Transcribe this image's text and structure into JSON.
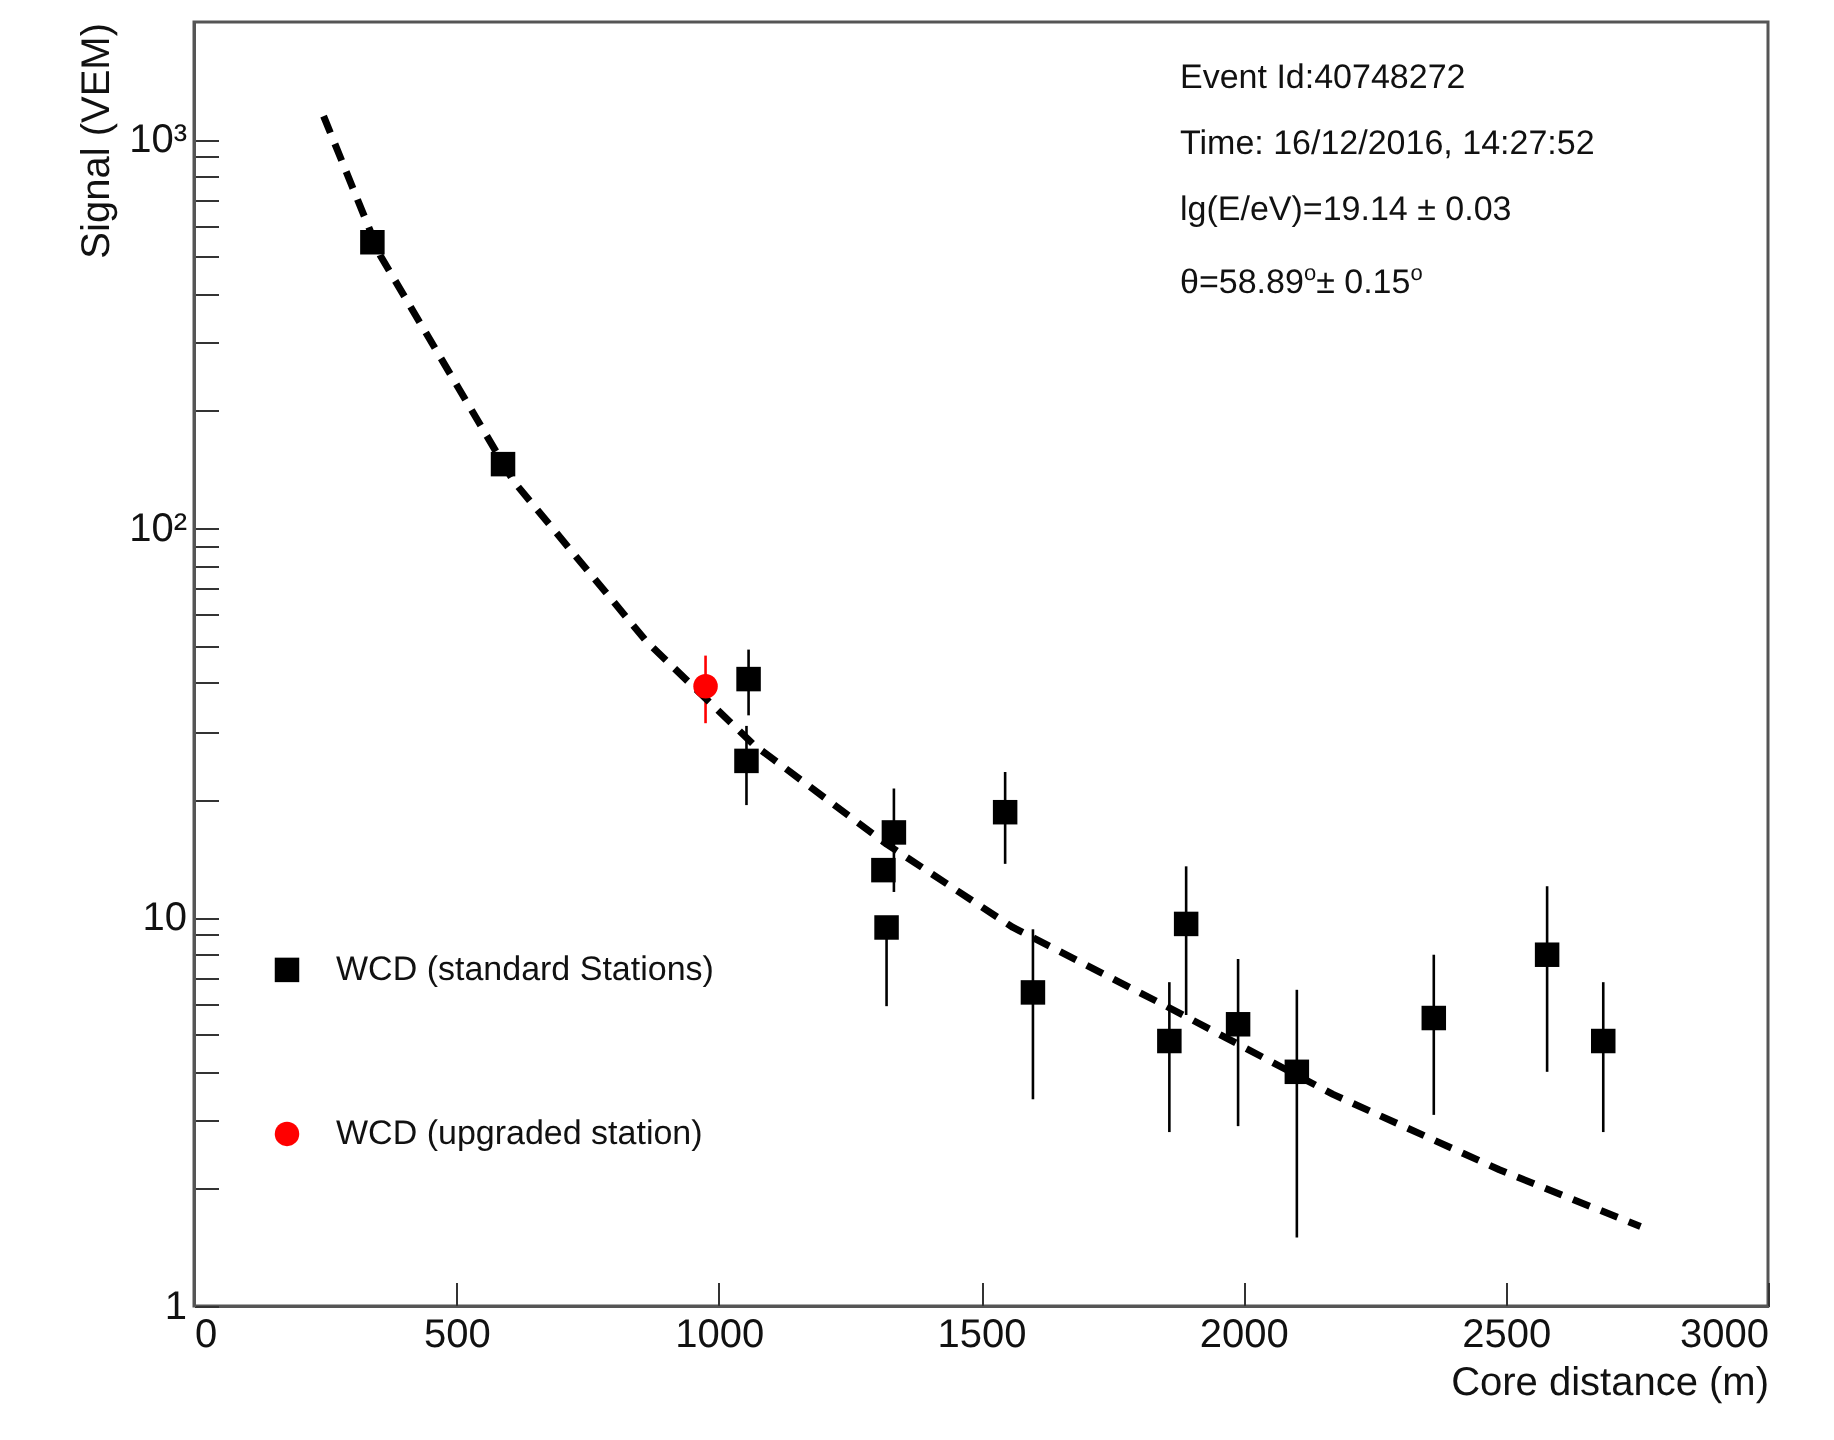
{
  "chart_data": {
    "type": "scatter",
    "xlabel": "Core distance (m)",
    "ylabel": "Signal (VEM)",
    "annotations": [
      "Event Id:40748272",
      "Time: 16/12/2016, 14:27:52",
      "lg(E/eV)=19.14 ± 0.03",
      "θ=58.89$^{o}$± 0.15$^{o}$"
    ],
    "xlim": [
      0,
      3000
    ],
    "xticks": [
      0,
      500,
      1000,
      1500,
      2000,
      2500,
      3000
    ],
    "ylim": [
      1,
      2000
    ],
    "log": "y",
    "yticks": [
      1,
      {
        "value": 2,
        "label": null
      },
      {
        "value": 3,
        "label": null
      },
      {
        "value": 4,
        "label": null
      },
      {
        "value": 5,
        "label": null
      },
      {
        "value": 6,
        "label": null
      },
      {
        "value": 7,
        "label": null
      },
      {
        "value": 8,
        "label": null
      },
      {
        "value": 9,
        "label": null
      },
      10,
      {
        "value": 20,
        "label": null
      },
      {
        "value": 30,
        "label": null
      },
      {
        "value": 40,
        "label": null
      },
      {
        "value": 50,
        "label": null
      },
      {
        "value": 60,
        "label": null
      },
      {
        "value": 70,
        "label": null
      },
      {
        "value": 80,
        "label": null
      },
      {
        "value": 90,
        "label": null
      },
      {
        "value": 100,
        "label": "10²"
      },
      {
        "value": 200,
        "label": null
      },
      {
        "value": 300,
        "label": null
      },
      {
        "value": 400,
        "label": null
      },
      {
        "value": 500,
        "label": null
      },
      {
        "value": 600,
        "label": null
      },
      {
        "value": 700,
        "label": null
      },
      {
        "value": 800,
        "label": null
      },
      {
        "value": 900,
        "label": null
      },
      {
        "value": 1000,
        "label": "10³"
      }
    ],
    "legend": "left",
    "grid": false,
    "series": [
      {
        "name": "WCD (standard Stations)",
        "color": "#000000",
        "marker": "square",
        "x": [
          340,
          589,
          1057,
          1053,
          1314,
          1320,
          1334,
          1546,
          1599,
          1859,
          1891,
          1990,
          2102,
          2363,
          2579,
          2686
        ],
        "values": [
          543,
          146,
          40.9,
          25.2,
          13.2,
          9.4,
          16.5,
          18.6,
          6.4,
          4.8,
          9.6,
          5.3,
          4.0,
          5.5,
          8.0,
          4.8
        ],
        "errors": [
          null,
          null,
          [
            33,
            48.7
          ],
          [
            19.4,
            31
          ],
          null,
          [
            5.9,
            9.4
          ],
          [
            11.6,
            21.4
          ],
          [
            13.7,
            23.6
          ],
          [
            3.4,
            9.3
          ],
          [
            2.8,
            6.8
          ],
          [
            5.6,
            13.5
          ],
          [
            2.9,
            7.8
          ],
          [
            1.5,
            6.5
          ],
          [
            3.1,
            8.0
          ],
          [
            4.0,
            12.0
          ],
          [
            2.8,
            6.8
          ]
        ]
      },
      {
        "name": "WCD (upgraded station)",
        "color": "#ff0000",
        "marker": "circle",
        "x": [
          975
        ],
        "values": [
          39.2
        ],
        "errors": [
          [
            31.5,
            47
          ]
        ]
      },
      {
        "type": "line",
        "color": "#000000",
        "marker": "none",
        "line_style": "dashed",
        "x": [
          247,
          355,
          609,
          863,
          1066,
          1320,
          1561,
          1853,
          2171,
          2488,
          2757
        ],
        "values": [
          1146,
          502,
          132,
          51,
          27.8,
          15.4,
          9.4,
          5.9,
          3.5,
          2.24,
          1.6
        ]
      }
    ]
  }
}
